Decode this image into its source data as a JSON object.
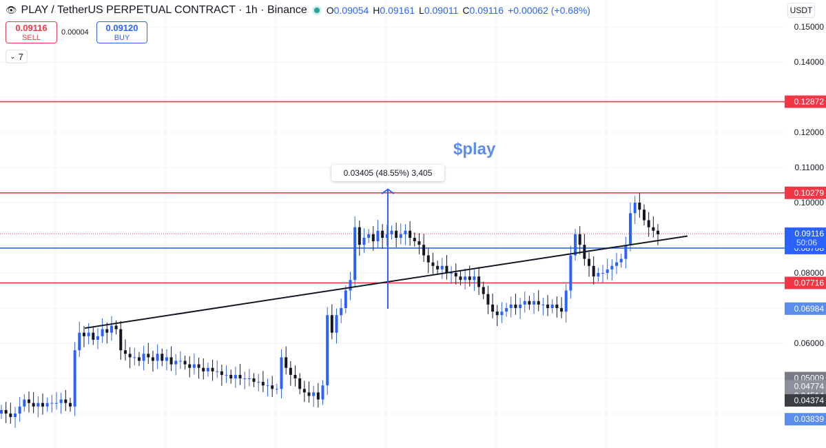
{
  "header": {
    "symbol_title": "PLAY / TetherUS PERPETUAL CONTRACT · 1h · Binance",
    "o_label": "O",
    "o_value": "0.09054",
    "h_label": "H",
    "h_value": "0.09161",
    "l_label": "L",
    "l_value": "0.09011",
    "c_label": "C",
    "c_value": "0.09116",
    "change": "+0.00062 (+0.68%)"
  },
  "trade": {
    "sell_price": "0.09116",
    "sell_label": "SELL",
    "spread": "0.00004",
    "buy_price": "0.09120",
    "buy_label": "BUY"
  },
  "collapse_count": "7",
  "currency": "USDT",
  "measure_tooltip": "0.03405 (48.55%) 3,405",
  "annotation": "$play",
  "countdown": "50:06",
  "colors": {
    "support_line": "#2962ff",
    "resistance_line": "#f23645",
    "candle_up": "#2962ff",
    "candle_down": "#131722",
    "note": "#5b8def"
  },
  "chart_data": {
    "type": "candlestick",
    "timeframe": "1h",
    "y_range": [
      0.02,
      0.155
    ],
    "y_ticks": [
      "0.15000",
      "0.14000",
      "0.12000",
      "0.11000",
      "0.10000",
      "0.08000",
      "0.06000"
    ],
    "current_price": "0.09116",
    "horizontal_lines": [
      {
        "value": 0.12872,
        "label": "0.12872",
        "color": "#f23645"
      },
      {
        "value": 0.10279,
        "label": "0.10279",
        "color": "#f23645"
      },
      {
        "value": 0.08708,
        "label": "0.08708",
        "color": "#2962ff"
      },
      {
        "value": 0.07716,
        "label": "0.07716",
        "color": "#f23645"
      }
    ],
    "price_tags": [
      {
        "value": 0.06984,
        "label": "0.06984",
        "color": "#5b8def"
      },
      {
        "value": 0.05009,
        "label": "0.05009",
        "color": "#787b86"
      },
      {
        "value": 0.04774,
        "label": "0.04774",
        "color": "#8e9099"
      },
      {
        "value": 0.04514,
        "label": "0.04514",
        "color": "#8e9099"
      },
      {
        "value": 0.04374,
        "label": "0.04374",
        "color": "#3b3d45"
      },
      {
        "value": 0.03839,
        "label": "0.03839",
        "color": "#5b8def"
      }
    ],
    "trendline": {
      "from": [
        0,
        0.0643
      ],
      "to": [
        1,
        0.0905
      ]
    },
    "closes": [
      0.041,
      0.04,
      0.039,
      0.04,
      0.042,
      0.044,
      0.043,
      0.042,
      0.043,
      0.042,
      0.043,
      0.043,
      0.043,
      0.044,
      0.043,
      0.042,
      0.058,
      0.063,
      0.062,
      0.063,
      0.061,
      0.062,
      0.064,
      0.063,
      0.065,
      0.064,
      0.058,
      0.057,
      0.056,
      0.056,
      0.055,
      0.057,
      0.056,
      0.055,
      0.057,
      0.055,
      0.056,
      0.054,
      0.055,
      0.055,
      0.054,
      0.053,
      0.054,
      0.053,
      0.052,
      0.053,
      0.052,
      0.052,
      0.051,
      0.051,
      0.05,
      0.051,
      0.05,
      0.05,
      0.05,
      0.049,
      0.049,
      0.048,
      0.048,
      0.047,
      0.047,
      0.056,
      0.053,
      0.051,
      0.05,
      0.047,
      0.046,
      0.045,
      0.046,
      0.044,
      0.048,
      0.068,
      0.063,
      0.068,
      0.07,
      0.075,
      0.078,
      0.093,
      0.088,
      0.09,
      0.091,
      0.089,
      0.092,
      0.09,
      0.091,
      0.092,
      0.09,
      0.091,
      0.092,
      0.09,
      0.089,
      0.088,
      0.085,
      0.083,
      0.082,
      0.081,
      0.082,
      0.08,
      0.08,
      0.079,
      0.078,
      0.079,
      0.078,
      0.079,
      0.076,
      0.074,
      0.071,
      0.069,
      0.068,
      0.069,
      0.07,
      0.071,
      0.07,
      0.071,
      0.072,
      0.071,
      0.072,
      0.071,
      0.071,
      0.07,
      0.071,
      0.07,
      0.069,
      0.075,
      0.085,
      0.091,
      0.088,
      0.084,
      0.082,
      0.079,
      0.08,
      0.08,
      0.081,
      0.082,
      0.083,
      0.084,
      0.088,
      0.097,
      0.1,
      0.098,
      0.095,
      0.093,
      0.092,
      0.091
    ]
  }
}
